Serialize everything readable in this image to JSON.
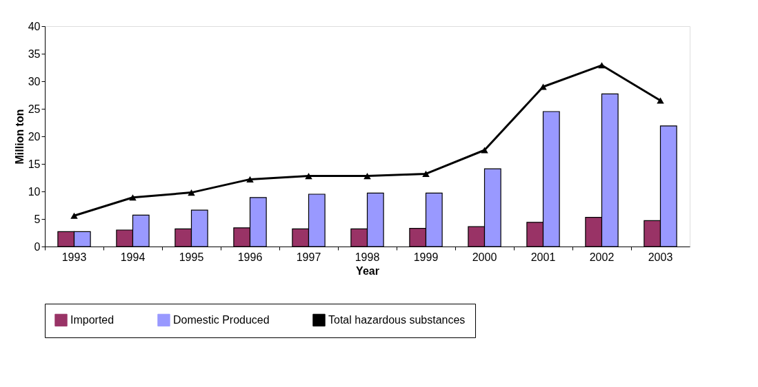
{
  "chart_data": {
    "type": "bar",
    "xlabel": "Year",
    "ylabel": "Million ton",
    "categories": [
      "1993",
      "1994",
      "1995",
      "1996",
      "1997",
      "1998",
      "1999",
      "2000",
      "2001",
      "2002",
      "2003"
    ],
    "series": [
      {
        "name": "Imported",
        "color": "#993366",
        "values": [
          2.7,
          3.0,
          3.2,
          3.4,
          3.2,
          3.2,
          3.3,
          3.6,
          4.4,
          5.3,
          4.7
        ]
      },
      {
        "name": "Domestic Produced",
        "color": "#9999ff",
        "values": [
          2.7,
          5.7,
          6.6,
          8.9,
          9.5,
          9.7,
          9.7,
          14.1,
          24.5,
          27.7,
          21.9
        ]
      },
      {
        "name": "Total hazardous substances",
        "type": "line",
        "color": "#000000",
        "marker": "triangle",
        "values": [
          5.6,
          8.9,
          9.8,
          12.2,
          12.8,
          12.8,
          13.2,
          17.5,
          29.0,
          32.9,
          26.5
        ]
      }
    ],
    "ylim": [
      0,
      40
    ],
    "yticks": [
      0,
      5,
      10,
      15,
      20,
      25,
      30,
      35,
      40
    ],
    "grid": false,
    "legend": "bottom"
  }
}
